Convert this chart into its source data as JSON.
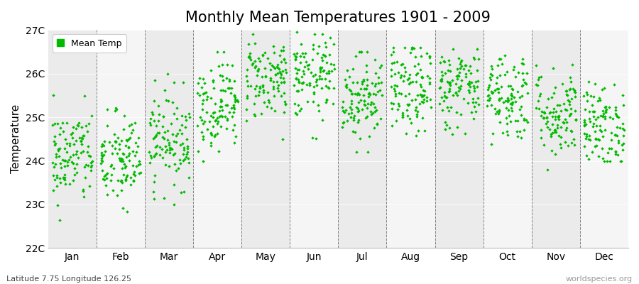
{
  "title": "Monthly Mean Temperatures 1901 - 2009",
  "ylabel": "Temperature",
  "xlabel_bottom": "Latitude 7.75 Longitude 126.25",
  "watermark": "worldspecies.org",
  "legend_label": "Mean Temp",
  "dot_color": "#00bb00",
  "bg_color_odd": "#ebebeb",
  "bg_color_even": "#f5f5f5",
  "ylim": [
    22.0,
    27.0
  ],
  "yticks": [
    22,
    23,
    24,
    25,
    26,
    27
  ],
  "ytick_labels": [
    "22C",
    "23C",
    "24C",
    "25C",
    "26C",
    "27C"
  ],
  "months": [
    "Jan",
    "Feb",
    "Mar",
    "Apr",
    "May",
    "Jun",
    "Jul",
    "Aug",
    "Sep",
    "Oct",
    "Nov",
    "Dec"
  ],
  "num_years": 109,
  "title_fontsize": 15,
  "axis_fontsize": 11,
  "tick_fontsize": 10,
  "dot_size": 5,
  "seed": 42,
  "monthly_mean": [
    24.1,
    24.0,
    24.5,
    25.3,
    25.9,
    25.9,
    25.5,
    25.6,
    25.7,
    25.5,
    25.1,
    24.8
  ],
  "monthly_std": [
    0.55,
    0.55,
    0.55,
    0.52,
    0.48,
    0.48,
    0.52,
    0.52,
    0.48,
    0.52,
    0.52,
    0.48
  ],
  "monthly_min": [
    22.0,
    22.5,
    23.0,
    24.0,
    24.5,
    24.5,
    24.2,
    24.2,
    24.5,
    24.2,
    23.8,
    24.0
  ],
  "monthly_max": [
    25.5,
    25.7,
    26.0,
    26.5,
    26.9,
    26.95,
    26.5,
    26.6,
    26.7,
    26.5,
    26.2,
    25.9
  ]
}
